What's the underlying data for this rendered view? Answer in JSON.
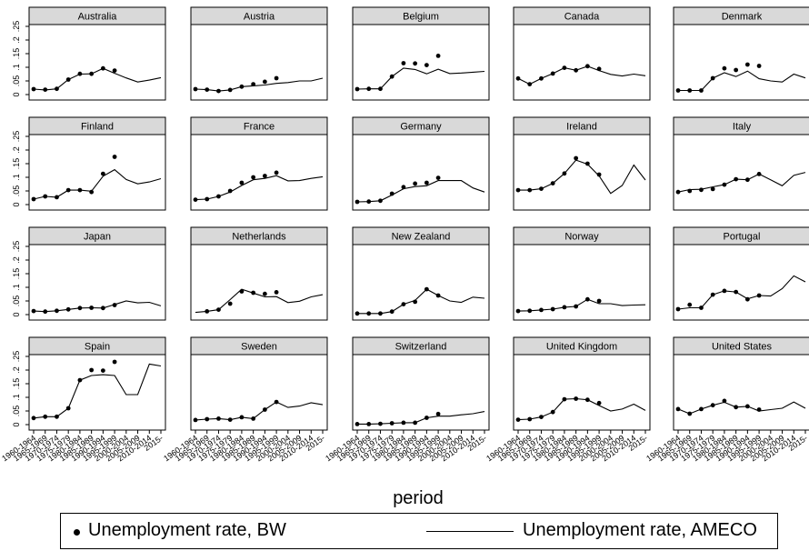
{
  "chart_data": {
    "type": "line",
    "layout": "small-multiples",
    "xlabel": "period",
    "x_ticks": [
      "1960-1964",
      "1965-1969",
      "1970-1974",
      "1975-1979",
      "1980-1984",
      "1985-1989",
      "1990-1994",
      "1995-1999",
      "2000-2004",
      "2005-2009",
      "2010-2014",
      "2015-"
    ],
    "y_ticks": [
      "0",
      ".05",
      ".1",
      ".15",
      ".2",
      ".25"
    ],
    "ylim": [
      0,
      0.25
    ],
    "legend": {
      "position": "bottom",
      "items": [
        {
          "label": "Unemployment rate, BW",
          "style": "dot"
        },
        {
          "label": "Unemployment rate, AMECO",
          "style": "line"
        }
      ]
    },
    "panels": [
      {
        "name": "Australia",
        "bw": [
          0.02,
          0.018,
          0.021,
          0.055,
          0.076,
          0.076,
          0.096,
          0.088,
          null,
          null,
          null,
          null
        ],
        "ameco": [
          0.02,
          0.017,
          0.021,
          0.055,
          0.075,
          0.076,
          0.096,
          0.078,
          0.061,
          0.046,
          0.053,
          0.062
        ]
      },
      {
        "name": "Austria",
        "bw": [
          0.02,
          0.018,
          0.013,
          0.017,
          0.029,
          0.038,
          0.047,
          0.06,
          null,
          null,
          null,
          null
        ],
        "ameco": [
          0.02,
          0.018,
          0.013,
          0.017,
          0.029,
          0.032,
          0.035,
          0.041,
          0.044,
          0.05,
          0.05,
          0.06
        ]
      },
      {
        "name": "Belgium",
        "bw": [
          0.02,
          0.021,
          0.021,
          0.066,
          0.115,
          0.114,
          0.108,
          0.142,
          null,
          null,
          null,
          null
        ],
        "ameco": [
          0.02,
          0.021,
          0.021,
          0.066,
          0.097,
          0.092,
          0.076,
          0.093,
          0.077,
          0.079,
          0.082,
          0.085
        ]
      },
      {
        "name": "Canada",
        "bw": [
          0.059,
          0.038,
          0.059,
          0.077,
          0.098,
          0.089,
          0.104,
          0.094,
          null,
          null,
          null,
          null
        ],
        "ameco": [
          0.059,
          0.038,
          0.059,
          0.077,
          0.098,
          0.089,
          0.104,
          0.088,
          0.074,
          0.068,
          0.075,
          0.069
        ]
      },
      {
        "name": "Denmark",
        "bw": [
          0.015,
          0.015,
          0.015,
          0.06,
          0.096,
          0.09,
          0.11,
          0.105,
          null,
          null,
          null,
          null
        ],
        "ameco": [
          0.015,
          0.015,
          0.015,
          0.06,
          0.08,
          0.066,
          0.086,
          0.058,
          0.05,
          0.046,
          0.075,
          0.061
        ]
      },
      {
        "name": "Finland",
        "bw": [
          0.02,
          0.03,
          0.027,
          0.053,
          0.053,
          0.046,
          0.113,
          0.175,
          null,
          null,
          null,
          null
        ],
        "ameco": [
          0.02,
          0.03,
          0.027,
          0.053,
          0.053,
          0.049,
          0.104,
          0.128,
          0.092,
          0.076,
          0.083,
          0.095
        ]
      },
      {
        "name": "France",
        "bw": [
          0.018,
          0.02,
          0.03,
          0.05,
          0.08,
          0.1,
          0.105,
          0.117,
          null,
          null,
          null,
          null
        ],
        "ameco": [
          0.018,
          0.02,
          0.03,
          0.046,
          0.07,
          0.091,
          0.096,
          0.106,
          0.087,
          0.088,
          0.096,
          0.102
        ]
      },
      {
        "name": "Germany",
        "bw": [
          0.01,
          0.011,
          0.014,
          0.04,
          0.064,
          0.077,
          0.08,
          0.098,
          null,
          null,
          null,
          null
        ],
        "ameco": [
          0.01,
          0.011,
          0.014,
          0.035,
          0.058,
          0.066,
          0.069,
          0.088,
          0.088,
          0.088,
          0.061,
          0.046
        ]
      },
      {
        "name": "Ireland",
        "bw": [
          0.053,
          0.053,
          0.058,
          0.078,
          0.114,
          0.17,
          0.15,
          0.11,
          null,
          null,
          null,
          null
        ],
        "ameco": [
          0.053,
          0.053,
          0.058,
          0.078,
          0.114,
          0.163,
          0.148,
          0.105,
          0.041,
          0.07,
          0.145,
          0.09
        ]
      },
      {
        "name": "Italy",
        "bw": [
          0.046,
          0.05,
          0.054,
          0.057,
          0.073,
          0.093,
          0.091,
          0.112,
          null,
          null,
          null,
          null
        ],
        "ameco": [
          0.046,
          0.055,
          0.056,
          0.065,
          0.073,
          0.093,
          0.091,
          0.112,
          0.091,
          0.069,
          0.107,
          0.118
        ]
      },
      {
        "name": "Japan",
        "bw": [
          0.013,
          0.011,
          0.014,
          0.019,
          0.024,
          0.025,
          0.024,
          0.035,
          null,
          null,
          null,
          null
        ],
        "ameco": [
          0.013,
          0.011,
          0.014,
          0.019,
          0.024,
          0.025,
          0.024,
          0.037,
          0.05,
          0.043,
          0.045,
          0.032
        ]
      },
      {
        "name": "Netherlands",
        "bw": [
          null,
          0.012,
          0.018,
          0.04,
          0.085,
          0.08,
          0.076,
          0.082,
          null,
          null,
          null,
          null
        ],
        "ameco": [
          0.008,
          0.012,
          0.018,
          0.055,
          0.093,
          0.079,
          0.065,
          0.066,
          0.044,
          0.049,
          0.065,
          0.073
        ]
      },
      {
        "name": "New Zealand",
        "bw": [
          0.004,
          0.004,
          0.004,
          0.011,
          0.038,
          0.047,
          0.093,
          0.07,
          null,
          null,
          null,
          null
        ],
        "ameco": [
          0.004,
          0.004,
          0.004,
          0.011,
          0.038,
          0.052,
          0.093,
          0.07,
          0.05,
          0.045,
          0.064,
          0.06
        ]
      },
      {
        "name": "Norway",
        "bw": [
          0.013,
          0.014,
          0.017,
          0.02,
          0.027,
          0.03,
          0.056,
          0.05,
          null,
          null,
          null,
          null
        ],
        "ameco": [
          0.013,
          0.014,
          0.017,
          0.02,
          0.027,
          0.03,
          0.056,
          0.04,
          0.04,
          0.033,
          0.035,
          0.036
        ]
      },
      {
        "name": "Portugal",
        "bw": [
          0.02,
          0.036,
          0.025,
          0.073,
          0.087,
          0.083,
          0.056,
          0.07,
          null,
          null,
          null,
          null
        ],
        "ameco": [
          0.02,
          0.025,
          0.025,
          0.073,
          0.087,
          0.083,
          0.058,
          0.07,
          0.068,
          0.095,
          0.142,
          0.12
        ]
      },
      {
        "name": "Spain",
        "bw": [
          0.024,
          0.029,
          0.029,
          0.06,
          0.163,
          0.2,
          0.198,
          0.23,
          null,
          null,
          null,
          null
        ],
        "ameco": [
          0.024,
          0.029,
          0.029,
          0.06,
          0.163,
          0.18,
          0.183,
          0.18,
          0.11,
          0.11,
          0.222,
          0.215
        ]
      },
      {
        "name": "Sweden",
        "bw": [
          0.017,
          0.02,
          0.022,
          0.018,
          0.027,
          0.022,
          0.055,
          0.083,
          null,
          null,
          null,
          null
        ],
        "ameco": [
          0.017,
          0.02,
          0.022,
          0.018,
          0.027,
          0.022,
          0.055,
          0.083,
          0.063,
          0.068,
          0.08,
          0.073
        ]
      },
      {
        "name": "Switzerland",
        "bw": [
          0.002,
          0.002,
          0.003,
          0.005,
          0.007,
          0.007,
          0.025,
          0.039,
          null,
          null,
          null,
          null
        ],
        "ameco": [
          0.002,
          0.002,
          0.003,
          0.005,
          0.007,
          0.007,
          0.025,
          0.031,
          0.031,
          0.036,
          0.04,
          0.048
        ]
      },
      {
        "name": "United Kingdom",
        "bw": [
          0.018,
          0.02,
          0.028,
          0.046,
          0.093,
          0.095,
          0.091,
          0.079,
          null,
          null,
          null,
          null
        ],
        "ameco": [
          0.018,
          0.02,
          0.028,
          0.046,
          0.093,
          0.095,
          0.091,
          0.07,
          0.05,
          0.057,
          0.075,
          0.052
        ]
      },
      {
        "name": "United States",
        "bw": [
          0.057,
          0.04,
          0.057,
          0.071,
          0.087,
          0.064,
          0.067,
          0.055,
          null,
          null,
          null,
          null
        ],
        "ameco": [
          0.057,
          0.04,
          0.057,
          0.071,
          0.082,
          0.064,
          0.067,
          0.05,
          0.055,
          0.06,
          0.083,
          0.06
        ]
      }
    ]
  }
}
